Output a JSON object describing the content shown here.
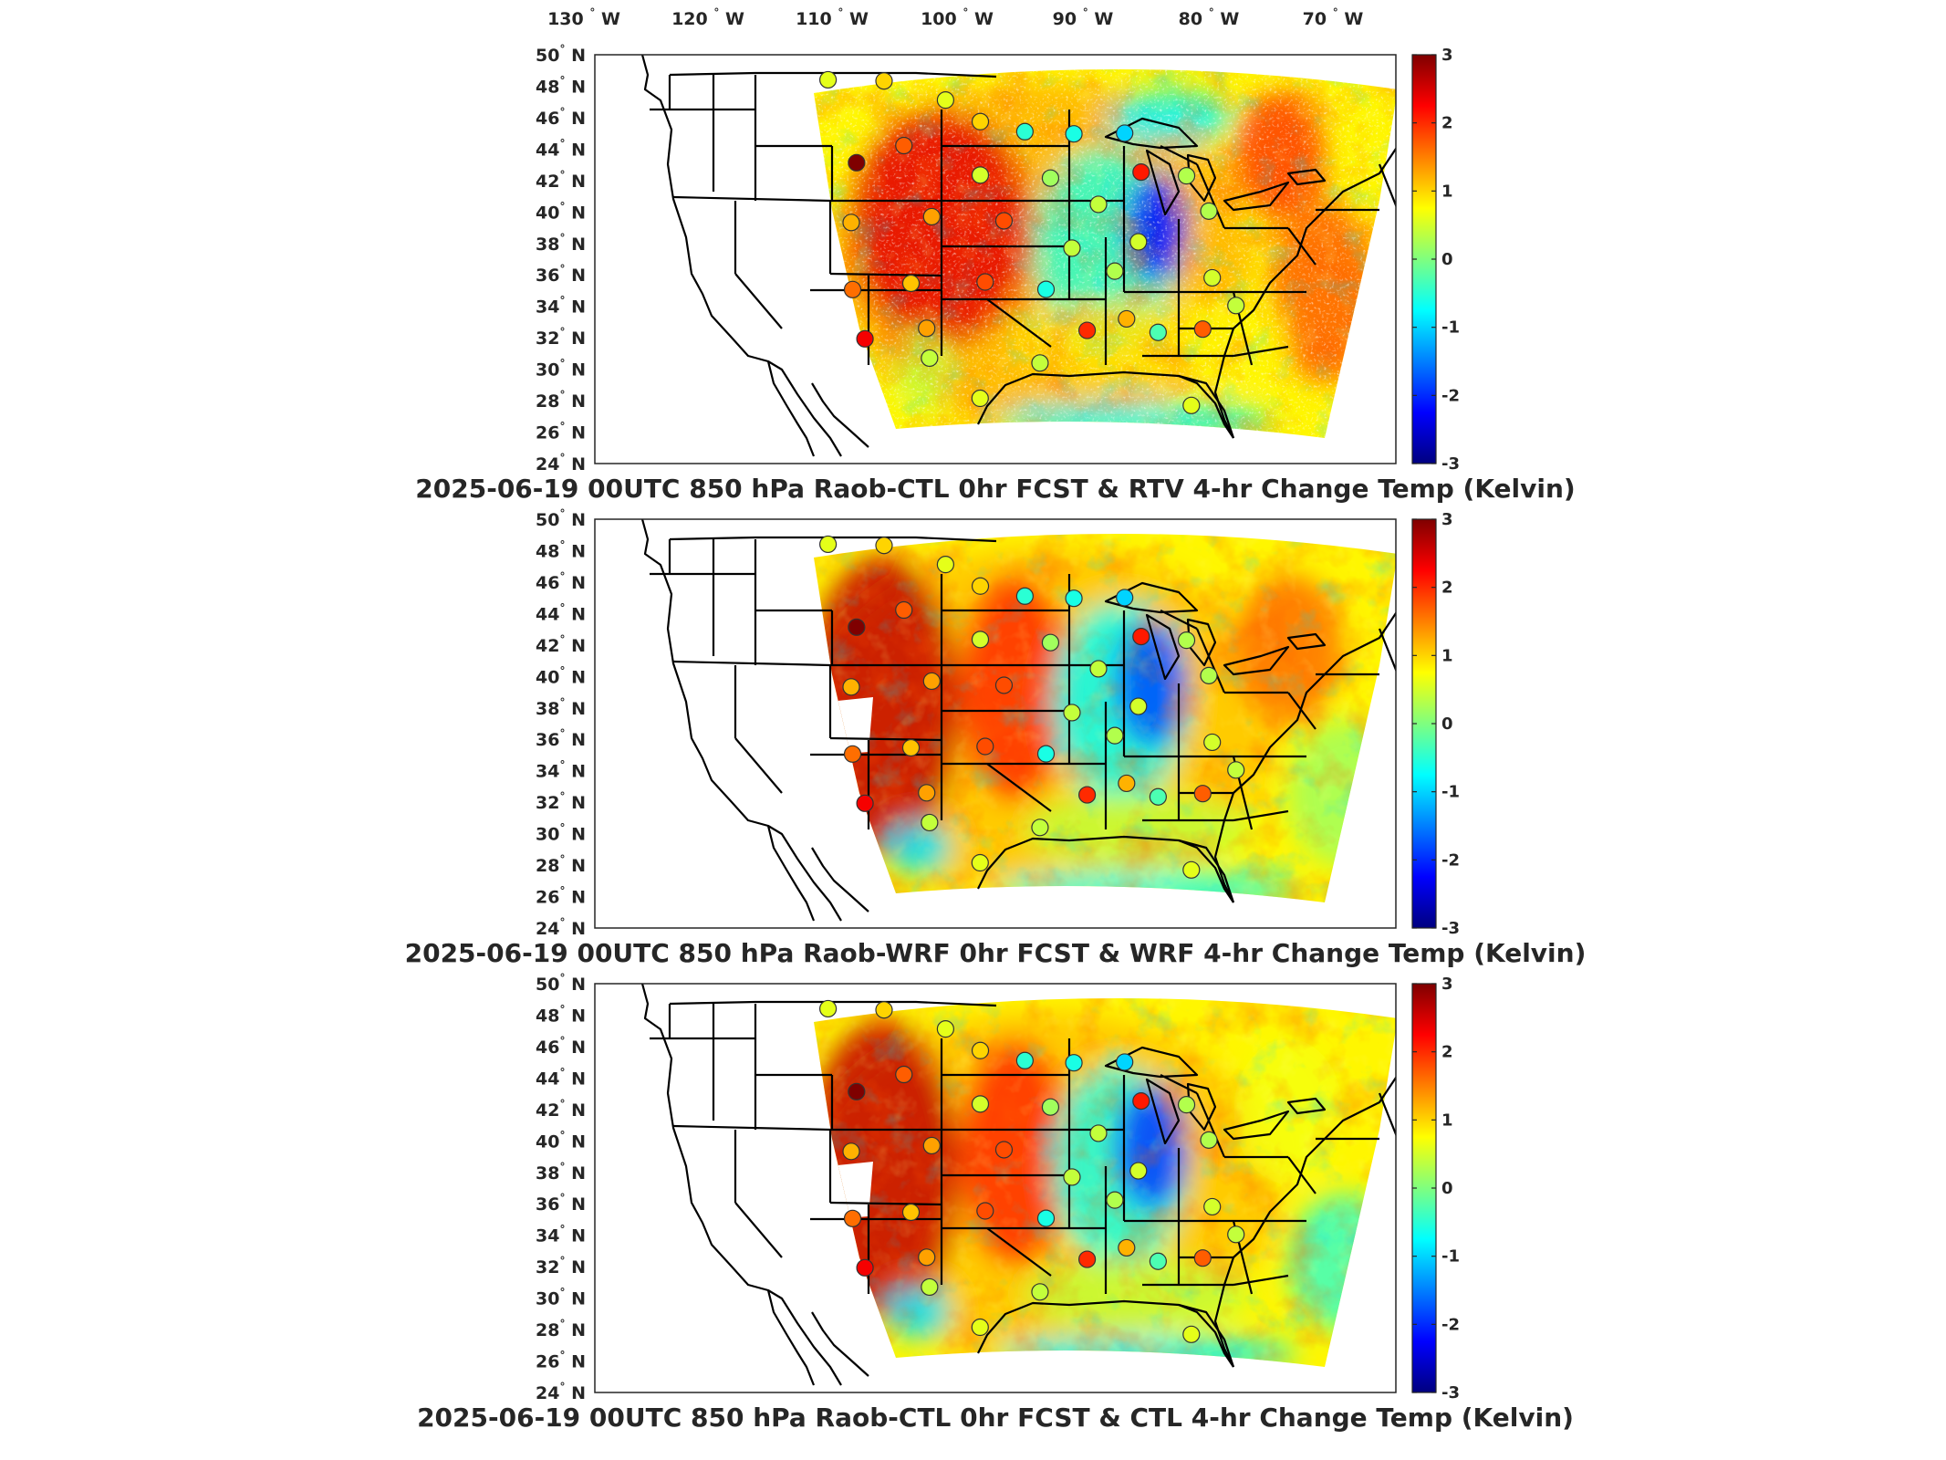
{
  "figure": {
    "lon_labels": [
      "130",
      "120",
      "110",
      "100",
      "90",
      "80",
      "70"
    ],
    "lon_suffix": "W",
    "lat_labels": [
      "50",
      "48",
      "46",
      "44",
      "42",
      "40",
      "38",
      "36",
      "34",
      "32",
      "30",
      "28",
      "26",
      "24"
    ],
    "lat_suffix": "N",
    "degree_symbol": "°",
    "colorbar": {
      "ticks": [
        "3",
        "2",
        "1",
        "0",
        "-1",
        "-2",
        "-3"
      ],
      "min": -3,
      "max": 3,
      "colormap": "jet",
      "colors": [
        "#00007f",
        "#0000ff",
        "#007fff",
        "#00ffff",
        "#7fff7f",
        "#ffff00",
        "#ff7f00",
        "#ff0000",
        "#7f0000"
      ]
    },
    "panels": [
      {
        "id": "rtv",
        "title": "2025-06-19 00UTC 850 hPa Raob-CTL 0hr FCST & RTV 4-hr Change Temp (Kelvin)",
        "field_style": "rtv"
      },
      {
        "id": "wrf",
        "title": "2025-06-19 00UTC 850 hPa Raob-WRF 0hr FCST & WRF 4-hr Change Temp (Kelvin)",
        "field_style": "wrf"
      },
      {
        "id": "ctl",
        "title": "2025-06-19 00UTC 850 hPa Raob-CTL 0hr FCST & CTL 4-hr Change Temp (Kelvin)",
        "field_style": "ctl"
      }
    ],
    "raob_stations": [
      {
        "lon": -111.9,
        "lat": 48.6,
        "value": 0.6
      },
      {
        "lon": -106.6,
        "lat": 48.2,
        "value": 1.0
      },
      {
        "lon": -100.8,
        "lat": 46.8,
        "value": 0.6
      },
      {
        "lon": -97.6,
        "lat": 45.4,
        "value": 1.0
      },
      {
        "lon": -93.6,
        "lat": 44.8,
        "value": -0.5
      },
      {
        "lon": -89.2,
        "lat": 44.8,
        "value": -0.6
      },
      {
        "lon": -84.6,
        "lat": 45.1,
        "value": -1.0
      },
      {
        "lon": -108.5,
        "lat": 43.1,
        "value": 3.2
      },
      {
        "lon": -104.4,
        "lat": 44.0,
        "value": 1.7
      },
      {
        "lon": -97.6,
        "lat": 42.0,
        "value": 0.5
      },
      {
        "lon": -91.5,
        "lat": 41.9,
        "value": 0.2
      },
      {
        "lon": -87.5,
        "lat": 40.4,
        "value": 0.4
      },
      {
        "lon": -83.5,
        "lat": 42.7,
        "value": 2.1
      },
      {
        "lon": -79.5,
        "lat": 42.8,
        "value": 0.3
      },
      {
        "lon": -78.0,
        "lat": 40.7,
        "value": 0.3
      },
      {
        "lon": -108.5,
        "lat": 39.3,
        "value": 1.2
      },
      {
        "lon": -101.7,
        "lat": 39.4,
        "value": 1.3
      },
      {
        "lon": -95.6,
        "lat": 39.1,
        "value": 1.8
      },
      {
        "lon": -90.0,
        "lat": 37.5,
        "value": 0.4
      },
      {
        "lon": -84.4,
        "lat": 38.2,
        "value": 0.5
      },
      {
        "lon": -78.6,
        "lat": 36.4,
        "value": 0.5
      },
      {
        "lon": -107.9,
        "lat": 35.0,
        "value": 1.6
      },
      {
        "lon": -103.2,
        "lat": 35.2,
        "value": 1.1
      },
      {
        "lon": -97.2,
        "lat": 35.2,
        "value": 1.8
      },
      {
        "lon": -86.6,
        "lat": 36.2,
        "value": 0.3
      },
      {
        "lon": -92.3,
        "lat": 34.8,
        "value": -0.6
      },
      {
        "lon": -89.2,
        "lat": 32.3,
        "value": 2.0
      },
      {
        "lon": -86.0,
        "lat": 33.2,
        "value": 1.2
      },
      {
        "lon": -83.6,
        "lat": 32.5,
        "value": -0.3
      },
      {
        "lon": -80.0,
        "lat": 33.0,
        "value": 1.7
      },
      {
        "lon": -77.0,
        "lat": 34.8,
        "value": 0.4
      },
      {
        "lon": -106.6,
        "lat": 31.8,
        "value": 2.3
      },
      {
        "lon": -101.8,
        "lat": 32.3,
        "value": 1.3
      },
      {
        "lon": -97.6,
        "lat": 27.8,
        "value": 0.6
      },
      {
        "lon": -101.5,
        "lat": 30.4,
        "value": 0.4
      },
      {
        "lon": -93.0,
        "lat": 30.1,
        "value": 0.4
      },
      {
        "lon": -81.7,
        "lat": 28.0,
        "value": 0.6
      }
    ]
  }
}
